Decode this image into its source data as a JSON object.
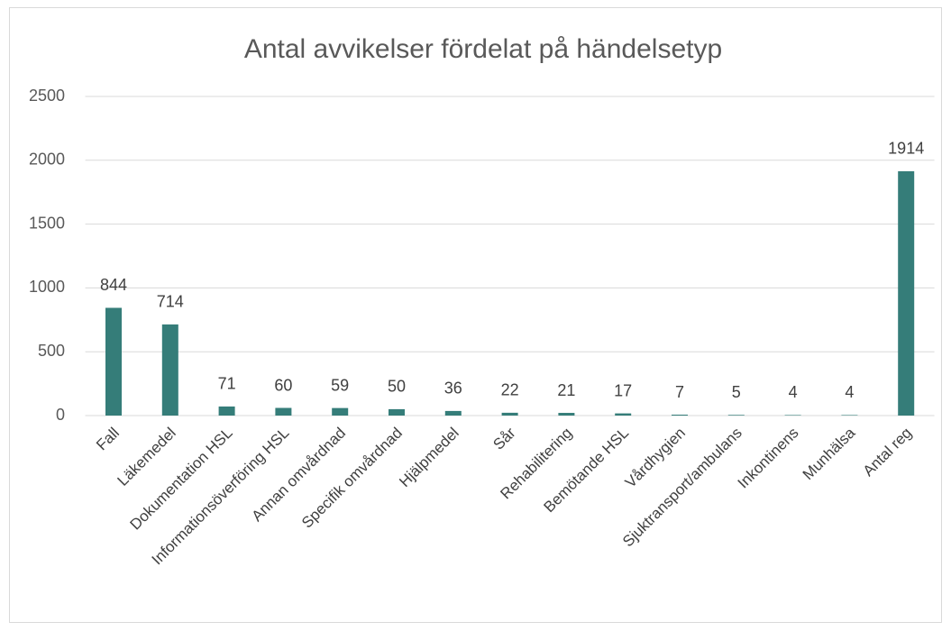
{
  "chart_data": {
    "type": "bar",
    "title": "Antal avvikelser fördelat på händelsetyp",
    "categories": [
      "Fall",
      "Läkemedel",
      "Dokumentation HSL",
      "Informationsöverföring HSL",
      "Annan omvårdnad",
      "Specifik omvårdnad",
      "Hjälpmedel",
      "Sår",
      "Rehabilitering",
      "Bemötande HSL",
      "Vårdhygien",
      "Sjuktransport/ambulans",
      "Inkontinens",
      "Munhälsa",
      "Antal reg"
    ],
    "values": [
      844,
      714,
      71,
      60,
      59,
      50,
      36,
      22,
      21,
      17,
      7,
      5,
      4,
      4,
      1914
    ],
    "color": "#357d79",
    "ylim": [
      0,
      2500
    ],
    "yticks": [
      0,
      500,
      1000,
      1500,
      2000,
      2500
    ],
    "grid": true
  }
}
